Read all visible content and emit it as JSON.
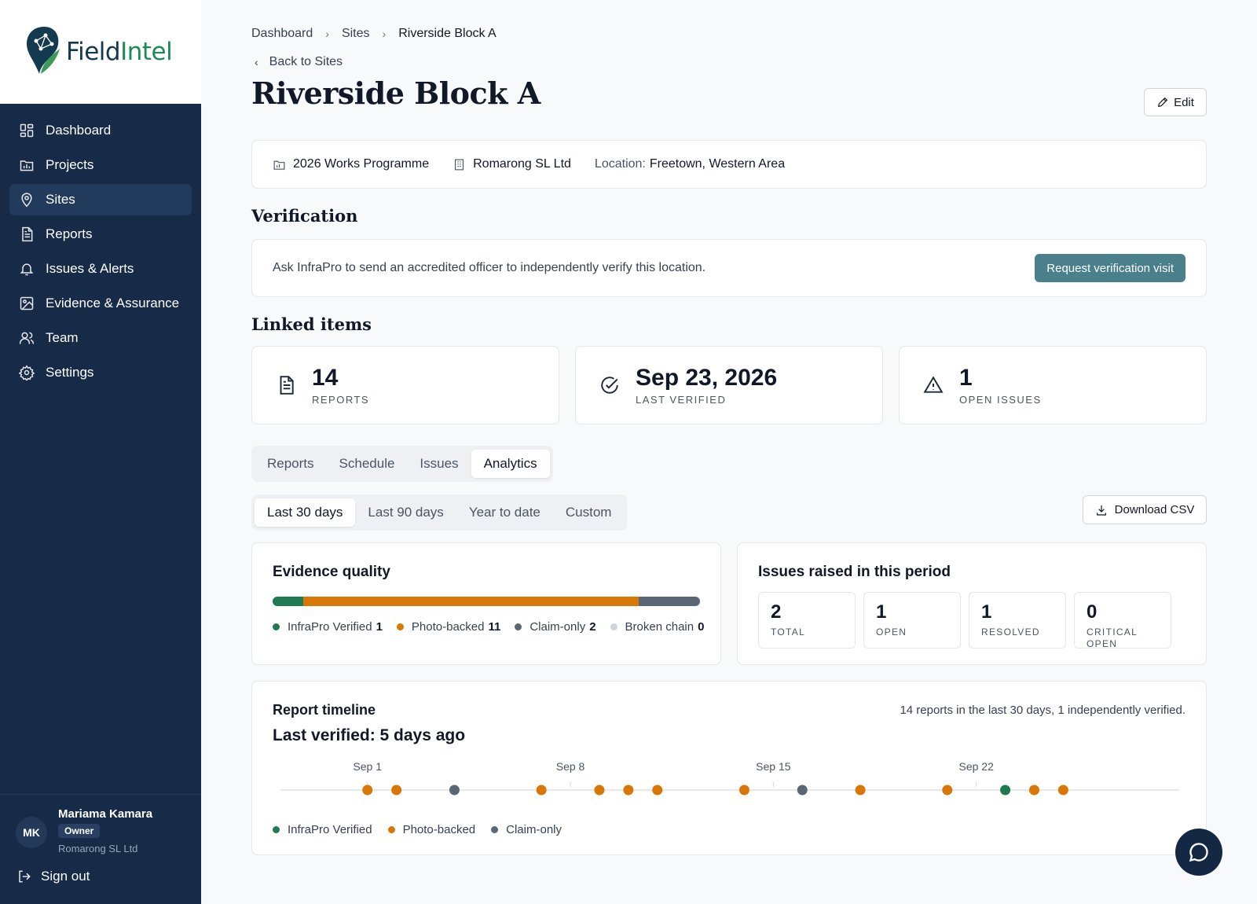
{
  "app": {
    "logo_text_1": "Field",
    "logo_text_2": "Intel"
  },
  "sidebar": {
    "items": [
      {
        "label": "Dashboard",
        "icon": "grid-icon"
      },
      {
        "label": "Projects",
        "icon": "folder-icon"
      },
      {
        "label": "Sites",
        "icon": "map-pin-icon",
        "active": true
      },
      {
        "label": "Reports",
        "icon": "file-text-icon"
      },
      {
        "label": "Issues & Alerts",
        "icon": "bell-icon"
      },
      {
        "label": "Evidence & Assurance",
        "icon": "image-icon"
      },
      {
        "label": "Team",
        "icon": "users-icon"
      },
      {
        "label": "Settings",
        "icon": "gear-icon"
      }
    ],
    "user": {
      "initials": "MK",
      "name": "Mariama Kamara",
      "role": "Owner",
      "org": "Romarong SL Ltd"
    },
    "sign_out": "Sign out"
  },
  "breadcrumb": [
    "Dashboard",
    "Sites",
    "Riverside Block A"
  ],
  "back_label": "Back to Sites",
  "page_title": "Riverside Block A",
  "edit_label": "Edit",
  "info": {
    "programme": "2026 Works Programme",
    "company": "Romarong SL Ltd",
    "location_label": "Location:",
    "location_value": "Freetown, Western Area"
  },
  "verification": {
    "heading": "Verification",
    "text": "Ask InfraPro to send an accredited officer to independently verify this location.",
    "button": "Request verification visit"
  },
  "linked": {
    "heading": "Linked items",
    "stats": [
      {
        "value": "14",
        "label": "REPORTS",
        "icon": "file-text-icon"
      },
      {
        "value": "Sep 23, 2026",
        "label": "LAST VERIFIED",
        "icon": "check-circle-icon"
      },
      {
        "value": "1",
        "label": "OPEN ISSUES",
        "icon": "alert-triangle-icon"
      }
    ]
  },
  "tabs": [
    {
      "label": "Reports"
    },
    {
      "label": "Schedule"
    },
    {
      "label": "Issues"
    },
    {
      "label": "Analytics",
      "active": true
    }
  ],
  "periods": [
    {
      "label": "Last 30 days",
      "active": true
    },
    {
      "label": "Last 90 days"
    },
    {
      "label": "Year to date"
    },
    {
      "label": "Custom"
    }
  ],
  "download_csv": "Download CSV",
  "evidence_quality": {
    "title": "Evidence quality",
    "segments": [
      {
        "label": "InfraPro Verified",
        "count": 1,
        "color": "#1f7a4f"
      },
      {
        "label": "Photo-backed",
        "count": 11,
        "color": "#d97706"
      },
      {
        "label": "Claim-only",
        "count": 2,
        "color": "#5b6675"
      },
      {
        "label": "Broken chain",
        "count": 0,
        "color": "#d1d5db"
      }
    ]
  },
  "issues_period": {
    "title": "Issues raised in this period",
    "stats": [
      {
        "value": "2",
        "label": "TOTAL"
      },
      {
        "value": "1",
        "label": "OPEN"
      },
      {
        "value": "1",
        "label": "RESOLVED"
      },
      {
        "value": "0",
        "label": "CRITICAL OPEN"
      }
    ]
  },
  "timeline": {
    "title": "Report timeline",
    "subtitle": "Last verified: 5 days ago",
    "summary": "14 reports in the last 30 days, 1 independently verified.",
    "ticks": [
      "Sep 1",
      "Sep 8",
      "Sep 15",
      "Sep 22"
    ],
    "tick_days": [
      1,
      8,
      15,
      22
    ],
    "day_range": [
      -2,
      29
    ],
    "points": [
      {
        "day": 1,
        "type": "photo"
      },
      {
        "day": 2,
        "type": "photo"
      },
      {
        "day": 4,
        "type": "claim"
      },
      {
        "day": 7,
        "type": "photo"
      },
      {
        "day": 9,
        "type": "photo"
      },
      {
        "day": 10,
        "type": "photo"
      },
      {
        "day": 11,
        "type": "photo"
      },
      {
        "day": 14,
        "type": "photo"
      },
      {
        "day": 16,
        "type": "claim"
      },
      {
        "day": 18,
        "type": "photo"
      },
      {
        "day": 21,
        "type": "photo"
      },
      {
        "day": 23,
        "type": "verified"
      },
      {
        "day": 24,
        "type": "photo"
      },
      {
        "day": 25,
        "type": "photo"
      }
    ],
    "legend": [
      {
        "label": "InfraPro Verified",
        "type": "verified",
        "color": "#1f7a4f"
      },
      {
        "label": "Photo-backed",
        "type": "photo",
        "color": "#d97706"
      },
      {
        "label": "Claim-only",
        "type": "claim",
        "color": "#5b6675"
      }
    ]
  },
  "chat_icon": "chat-bubble-icon"
}
